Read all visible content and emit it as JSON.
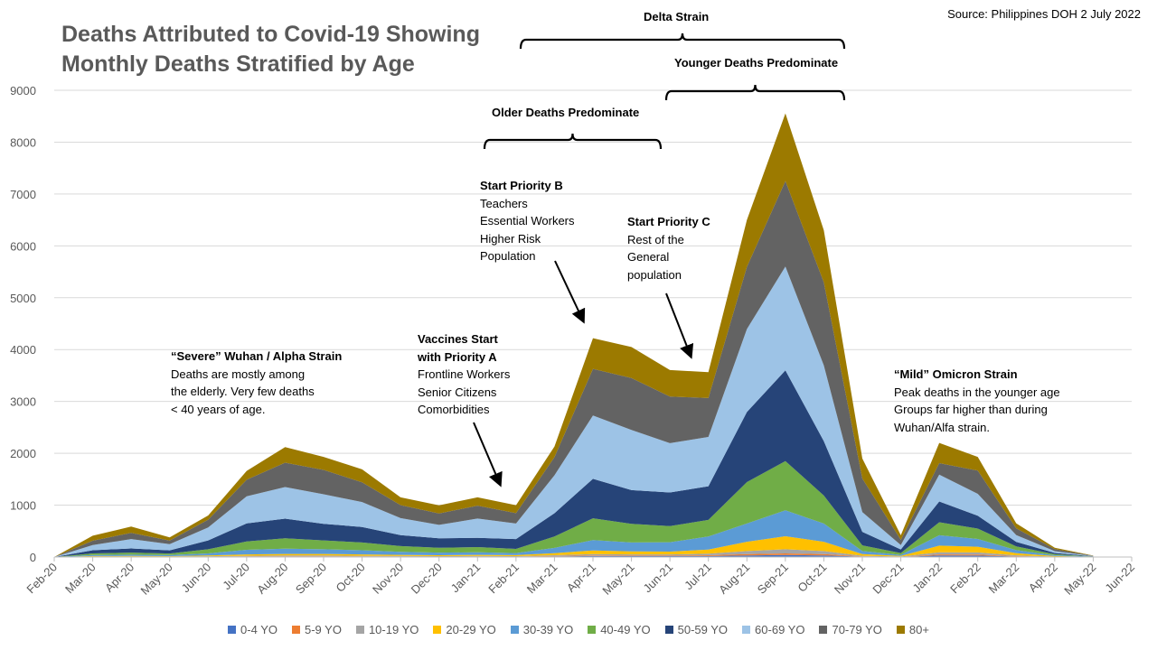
{
  "chart_data": {
    "type": "area",
    "stacked": true,
    "title_lines": [
      "Deaths Attributed to Covid-19 Showing",
      "Monthly Deaths Stratified by Age"
    ],
    "source": "Source: Philippines DOH 2 July 2022",
    "x": [
      "Feb-20",
      "Mar-20",
      "Apr-20",
      "May-20",
      "Jun-20",
      "Jul-20",
      "Aug-20",
      "Sep-20",
      "Oct-20",
      "Nov-20",
      "Dec-20",
      "Jan-21",
      "Feb-21",
      "Mar-21",
      "Apr-21",
      "May-21",
      "Jun-21",
      "Jul-21",
      "Aug-21",
      "Sep-21",
      "Oct-21",
      "Nov-21",
      "Dec-21",
      "Jan-22",
      "Feb-22",
      "Mar-22",
      "Apr-22",
      "May-22",
      "Jun-22"
    ],
    "ylim": [
      0,
      9000
    ],
    "yticks": [
      0,
      1000,
      2000,
      3000,
      4000,
      5000,
      6000,
      7000,
      8000,
      9000
    ],
    "grid": true,
    "legend_position": "bottom",
    "series": [
      {
        "name": "0-4 YO",
        "color": "#4472C4",
        "values": [
          0,
          3,
          4,
          3,
          5,
          8,
          10,
          10,
          8,
          7,
          6,
          7,
          6,
          12,
          20,
          18,
          18,
          20,
          30,
          40,
          30,
          8,
          4,
          30,
          28,
          10,
          3,
          1,
          null
        ]
      },
      {
        "name": "5-9 YO",
        "color": "#ED7D31",
        "values": [
          0,
          2,
          2,
          2,
          3,
          5,
          5,
          5,
          5,
          4,
          3,
          4,
          3,
          8,
          12,
          10,
          10,
          15,
          25,
          30,
          25,
          5,
          2,
          20,
          20,
          8,
          2,
          1,
          null
        ]
      },
      {
        "name": "10-19 YO",
        "color": "#A5A5A5",
        "values": [
          0,
          5,
          5,
          5,
          7,
          12,
          15,
          15,
          12,
          10,
          8,
          10,
          9,
          15,
          25,
          22,
          22,
          30,
          60,
          80,
          60,
          12,
          5,
          40,
          40,
          15,
          4,
          1,
          null
        ]
      },
      {
        "name": "20-29 YO",
        "color": "#FFC000",
        "values": [
          0,
          10,
          10,
          8,
          15,
          25,
          30,
          30,
          25,
          20,
          18,
          20,
          18,
          40,
          70,
          60,
          55,
          80,
          180,
          250,
          180,
          30,
          10,
          130,
          110,
          40,
          10,
          2,
          null
        ]
      },
      {
        "name": "30-39 YO",
        "color": "#5B9BD5",
        "values": [
          0,
          20,
          25,
          20,
          40,
          90,
          100,
          90,
          80,
          60,
          50,
          50,
          40,
          100,
          200,
          170,
          180,
          250,
          350,
          500,
          350,
          60,
          20,
          200,
          150,
          60,
          15,
          3,
          null
        ]
      },
      {
        "name": "40-49 YO",
        "color": "#70AD47",
        "values": [
          0,
          30,
          40,
          30,
          80,
          160,
          200,
          170,
          150,
          110,
          95,
          100,
          80,
          220,
          420,
          360,
          310,
          320,
          800,
          950,
          540,
          110,
          35,
          250,
          200,
          70,
          20,
          3,
          null
        ]
      },
      {
        "name": "50-59 YO",
        "color": "#264478",
        "values": [
          0,
          60,
          80,
          60,
          170,
          350,
          380,
          320,
          300,
          210,
          180,
          180,
          190,
          450,
          760,
          650,
          650,
          650,
          1350,
          1750,
          1050,
          260,
          70,
          400,
          250,
          90,
          25,
          4,
          null
        ]
      },
      {
        "name": "60-69 YO",
        "color": "#9DC3E6",
        "values": [
          0,
          100,
          180,
          120,
          250,
          520,
          610,
          570,
          480,
          330,
          260,
          370,
          300,
          730,
          1220,
          1160,
          950,
          950,
          1600,
          2000,
          1460,
          380,
          85,
          520,
          420,
          130,
          35,
          5,
          null
        ]
      },
      {
        "name": "70-79 YO",
        "color": "#636363",
        "values": [
          0,
          85,
          120,
          70,
          150,
          320,
          470,
          470,
          380,
          250,
          220,
          250,
          200,
          350,
          900,
          1000,
          900,
          750,
          1200,
          1650,
          1600,
          650,
          100,
          220,
          450,
          130,
          40,
          5,
          null
        ]
      },
      {
        "name": "80+",
        "color": "#9C7A00",
        "values": [
          0,
          95,
          120,
          62,
          80,
          170,
          300,
          250,
          250,
          149,
          157,
          159,
          154,
          205,
          593,
          600,
          510,
          500,
          905,
          1305,
          1005,
          385,
          89,
          390,
          262,
          97,
          26,
          3,
          null
        ]
      }
    ],
    "annotations": [
      {
        "id": "wuhan",
        "head": "“Severe” Wuhan / Alpha Strain",
        "lines": [
          "Deaths are mostly among",
          "the elderly.  Very few deaths",
          "< 40 years of age."
        ]
      },
      {
        "id": "vacc",
        "head": "Vaccines Start",
        "lines": [
          "with Priority A",
          "Frontline Workers",
          "Senior Citizens",
          "Comorbidities"
        ]
      },
      {
        "id": "prioB",
        "head": "Start Priority B",
        "lines": [
          "Teachers",
          "Essential Workers",
          "Higher Risk",
          "Population"
        ]
      },
      {
        "id": "prioC",
        "head": "Start Priority C",
        "lines": [
          "Rest of the",
          "General",
          "population"
        ]
      },
      {
        "id": "omicron",
        "head": "“Mild” Omicron Strain",
        "lines": [
          "Peak deaths in the younger age",
          "Groups far higher than during",
          "Wuhan/Alfa strain."
        ]
      }
    ],
    "brackets": [
      {
        "id": "delta",
        "label": "Delta Strain"
      },
      {
        "id": "younger",
        "label": "Younger Deaths Predominate"
      },
      {
        "id": "older",
        "label": "Older Deaths Predominate"
      }
    ]
  }
}
